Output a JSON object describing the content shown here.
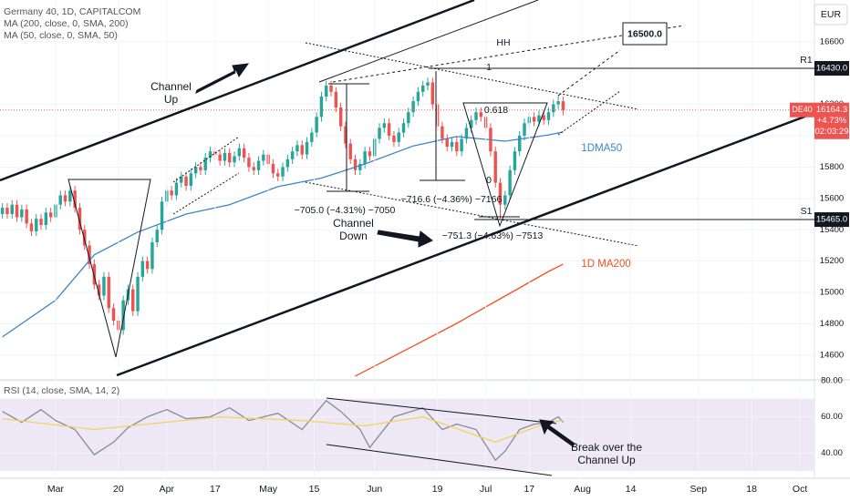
{
  "chart_data": [
    {
      "type": "candlestick",
      "title": "Germany 40, 1D, CAPITALCOM",
      "currency": "EUR",
      "up_color": "#26a69a",
      "down_color": "#ef5350",
      "xlim": [
        -0.5,
        168
      ],
      "ylim": [
        14454,
        16866
      ],
      "yticks": [
        14600,
        14800,
        15000,
        15200,
        15400,
        15600,
        15800,
        16000,
        16200,
        16600
      ],
      "grid": true,
      "open": [
        15500,
        15540,
        15500,
        15560,
        15480,
        15530,
        15440,
        15390,
        15470,
        15430,
        15510,
        15480,
        15560,
        15620,
        15580,
        15650,
        15540,
        15400,
        15300,
        15180,
        15050,
        14980,
        15100,
        14900,
        14820,
        14760,
        14950,
        15020,
        14880,
        15100,
        15200,
        15150,
        15320,
        15400,
        15580,
        15650,
        15620,
        15700,
        15740,
        15680,
        15760,
        15800,
        15780,
        15860,
        15900,
        15880,
        15840,
        15890,
        15830,
        15870,
        15920,
        15860,
        15800,
        15780,
        15840,
        15880,
        15820,
        15760,
        15740,
        15800,
        15850,
        15900,
        15940,
        15880,
        15960,
        16020,
        16120,
        16250,
        16320,
        16280,
        16180,
        16060,
        15950,
        15850,
        15780,
        15820,
        15900,
        15870,
        15980,
        16050,
        16080,
        16000,
        15960,
        16020,
        16080,
        16150,
        16220,
        16280,
        16320,
        16340,
        16200,
        16060,
        15980,
        15930,
        15960,
        15900,
        15980,
        16050,
        16100,
        16150,
        16120,
        16050,
        15900,
        15700,
        15560,
        15620,
        15780,
        15900,
        16000,
        16080,
        16120,
        16090,
        16130,
        16100,
        16150,
        16200,
        16220
      ],
      "high": [
        15570,
        15570,
        15590,
        15590,
        15560,
        15560,
        15470,
        15500,
        15500,
        15540,
        15540,
        15590,
        15650,
        15650,
        15680,
        15680,
        15570,
        15430,
        15330,
        15210,
        15080,
        15130,
        15130,
        14930,
        14850,
        14980,
        15050,
        15050,
        15130,
        15230,
        15230,
        15350,
        15430,
        15610,
        15680,
        15680,
        15730,
        15770,
        15770,
        15790,
        15830,
        15830,
        15890,
        15930,
        15930,
        15910,
        15920,
        15920,
        15900,
        15950,
        15950,
        15890,
        15830,
        15870,
        15910,
        15910,
        15850,
        15790,
        15830,
        15880,
        15930,
        15970,
        15970,
        15990,
        16050,
        16150,
        16280,
        16350,
        16350,
        16310,
        16210,
        16090,
        15980,
        15880,
        15850,
        15930,
        15930,
        16010,
        16080,
        16110,
        16110,
        16030,
        16050,
        16110,
        16180,
        16250,
        16310,
        16350,
        16370,
        16370,
        16230,
        16090,
        16010,
        15990,
        15990,
        16010,
        16080,
        16130,
        16180,
        16180,
        16150,
        16080,
        15930,
        15730,
        15650,
        15810,
        15930,
        16030,
        16110,
        16150,
        16150,
        16160,
        16160,
        16180,
        16230,
        16260,
        16250
      ],
      "low": [
        15470,
        15470,
        15470,
        15450,
        15450,
        15410,
        15360,
        15360,
        15400,
        15400,
        15450,
        15450,
        15530,
        15550,
        15550,
        15510,
        15370,
        15270,
        15150,
        15020,
        14950,
        14950,
        14870,
        14790,
        14710,
        14730,
        14920,
        14850,
        14850,
        15070,
        15120,
        15120,
        15290,
        15370,
        15550,
        15590,
        15590,
        15670,
        15650,
        15650,
        15730,
        15750,
        15750,
        15830,
        15850,
        15810,
        15810,
        15800,
        15800,
        15840,
        15830,
        15770,
        15750,
        15750,
        15810,
        15790,
        15730,
        15710,
        15710,
        15770,
        15820,
        15870,
        15850,
        15850,
        15930,
        15990,
        16090,
        16220,
        16250,
        16150,
        16030,
        15920,
        15820,
        15750,
        15750,
        15790,
        15840,
        15840,
        15950,
        16020,
        15970,
        15930,
        15930,
        15990,
        16050,
        16120,
        16190,
        16250,
        16290,
        16170,
        16030,
        15950,
        15900,
        15900,
        15870,
        15870,
        15950,
        16020,
        16070,
        16090,
        16020,
        15870,
        15670,
        15470,
        15530,
        15590,
        15750,
        15870,
        15970,
        16050,
        16060,
        16060,
        16070,
        16070,
        16120,
        16170,
        16130
      ],
      "close": [
        15540,
        15500,
        15560,
        15480,
        15530,
        15440,
        15390,
        15470,
        15430,
        15510,
        15480,
        15560,
        15620,
        15580,
        15650,
        15540,
        15400,
        15300,
        15180,
        15050,
        14980,
        15100,
        14900,
        14820,
        14760,
        14950,
        15020,
        14880,
        15100,
        15200,
        15150,
        15320,
        15400,
        15580,
        15650,
        15620,
        15700,
        15740,
        15680,
        15760,
        15800,
        15780,
        15860,
        15900,
        15880,
        15840,
        15890,
        15830,
        15870,
        15920,
        15860,
        15800,
        15780,
        15840,
        15880,
        15820,
        15760,
        15740,
        15800,
        15850,
        15900,
        15940,
        15880,
        15960,
        16020,
        16120,
        16250,
        16320,
        16280,
        16180,
        16060,
        15950,
        15850,
        15780,
        15820,
        15900,
        15870,
        15980,
        16050,
        16080,
        16000,
        15960,
        16020,
        16080,
        16150,
        16220,
        16280,
        16320,
        16340,
        16200,
        16060,
        15980,
        15930,
        15960,
        15900,
        15980,
        16050,
        16100,
        16150,
        16120,
        16050,
        15900,
        15700,
        15560,
        15620,
        15780,
        15900,
        16000,
        16080,
        16120,
        16090,
        16130,
        16100,
        16150,
        16200,
        16220,
        16164.3
      ],
      "series": [
        {
          "name": "MA (200, close, 0, SMA, 200)",
          "label": "1D MA200",
          "color": "#f4511e",
          "x": [
            73,
            85,
            94,
            104,
            113,
            116
          ],
          "values": [
            14466,
            14658,
            14803,
            14977,
            15134,
            15180
          ]
        },
        {
          "name": "MA (50, close, 0, SMA, 50)",
          "label": "1DMA50",
          "color": "#3d85c6",
          "x": [
            0,
            11,
            19,
            28,
            38,
            47,
            57,
            66,
            75,
            85,
            94,
            104,
            113,
            116
          ],
          "values": [
            14716,
            14950,
            15240,
            15385,
            15500,
            15560,
            15675,
            15730,
            15820,
            15935,
            15995,
            15965,
            16005,
            16024
          ]
        }
      ],
      "levels": [
        {
          "name": "R1",
          "value": 16430,
          "label": "16430.0"
        },
        {
          "name": "S1",
          "value": 15465,
          "label": "15465.0"
        }
      ],
      "target": {
        "value": 16500,
        "label": "16500.0"
      },
      "price_tag": {
        "symbol": "DE40",
        "value": 16164.3,
        "change": "+4.73%",
        "countdown": "02:03:29"
      },
      "annotations": {
        "channel_up": "Channel Up",
        "channel_down": "Channel Down",
        "hh": "HH",
        "fib": "0.618",
        "fib_zero": "0",
        "fib_one": "1",
        "measure_1": "−705.0 (−4.31%) −7050",
        "measure_2": "−716.6 (−4.36%) −7166",
        "measure_3": "−751.3 (−4.63%) −7513"
      }
    },
    {
      "type": "line",
      "title": "RSI (14, close, SMA, 14, 2)",
      "xlim": [
        -0.5,
        168
      ],
      "ylim": [
        26,
        80
      ],
      "band": [
        30,
        70
      ],
      "band_color": "#ede7f6",
      "yticks": [
        {
          "value": 40,
          "label": "40.00"
        },
        {
          "value": 60,
          "label": "60.00"
        },
        {
          "value": 80,
          "label": "80.00"
        }
      ],
      "xticks": [
        {
          "value": 11,
          "label": "Mar"
        },
        {
          "value": 24,
          "label": "20"
        },
        {
          "value": 34,
          "label": "Apr"
        },
        {
          "value": 44,
          "label": "17"
        },
        {
          "value": 55,
          "label": "May"
        },
        {
          "value": 64.5,
          "label": "15"
        },
        {
          "value": 77,
          "label": "Jun"
        },
        {
          "value": 90,
          "label": "19"
        },
        {
          "value": 100,
          "label": "Jul"
        },
        {
          "value": 109,
          "label": "17"
        },
        {
          "value": 120,
          "label": "Aug"
        },
        {
          "value": 130,
          "label": "14"
        },
        {
          "value": 144,
          "label": "Sep"
        },
        {
          "value": 155,
          "label": "18"
        },
        {
          "value": 165,
          "label": "Oct"
        }
      ],
      "series": [
        {
          "color": "#8a8a9a",
          "x": [
            0,
            4,
            8,
            11,
            15,
            19,
            23,
            26,
            30,
            34,
            38,
            43,
            47,
            51,
            57,
            62,
            67,
            70,
            74,
            76,
            81,
            87,
            91,
            94,
            98,
            102,
            104,
            107,
            110,
            113,
            115,
            116
          ],
          "values": [
            63,
            57,
            64,
            58,
            53,
            39,
            46,
            54,
            60,
            64,
            59,
            60,
            65,
            58,
            62,
            53,
            69,
            63,
            53,
            43,
            60,
            65,
            53,
            56,
            53,
            36,
            41,
            53,
            56,
            57,
            60,
            57
          ]
        },
        {
          "color": "#f2d45c",
          "x": [
            0,
            19,
            30,
            45,
            62,
            75,
            87,
            102,
            113,
            116
          ],
          "values": [
            59,
            53,
            56,
            60,
            58,
            55,
            60,
            46,
            57,
            58
          ]
        }
      ],
      "annotations": {
        "break": "Break over the Channel Up"
      }
    }
  ]
}
